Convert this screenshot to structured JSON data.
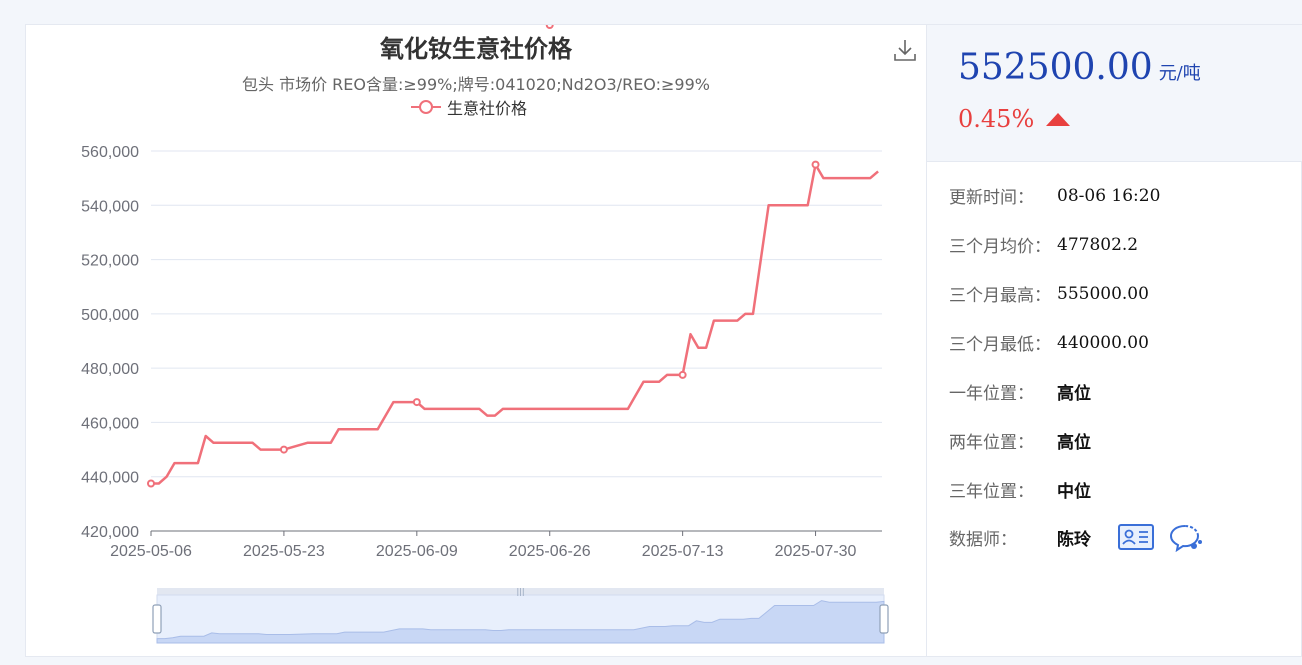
{
  "chart_data": {
    "type": "line",
    "title": "氧化钕生意社价格",
    "subtitle": "包头 市场价 REO含量:≥99%;牌号:041020;Nd2O3/REO:≥99%",
    "series_name": "生意社价格",
    "ylim": [
      420000,
      560000
    ],
    "y_ticks": [
      "420,000",
      "440,000",
      "460,000",
      "480,000",
      "500,000",
      "520,000",
      "540,000",
      "560,000"
    ],
    "x_ticks": [
      "2025-05-06",
      "2025-05-23",
      "2025-06-09",
      "2025-06-26",
      "2025-07-13",
      "2025-07-30"
    ],
    "points": [
      [
        "2025-05-06",
        437500
      ],
      [
        "2025-05-07",
        437500
      ],
      [
        "2025-05-08",
        440000
      ],
      [
        "2025-05-09",
        445000
      ],
      [
        "2025-05-12",
        445000
      ],
      [
        "2025-05-13",
        455000
      ],
      [
        "2025-05-14",
        452500
      ],
      [
        "2025-05-19",
        452500
      ],
      [
        "2025-05-20",
        450000
      ],
      [
        "2025-05-23",
        450000
      ],
      [
        "2025-05-26",
        452500
      ],
      [
        "2025-05-29",
        452500
      ],
      [
        "2025-05-30",
        457500
      ],
      [
        "2025-06-04",
        457500
      ],
      [
        "2025-06-06",
        467500
      ],
      [
        "2025-06-09",
        467500
      ],
      [
        "2025-06-10",
        465000
      ],
      [
        "2025-06-17",
        465000
      ],
      [
        "2025-06-18",
        462500
      ],
      [
        "2025-06-19",
        462500
      ],
      [
        "2025-06-20",
        465000
      ],
      [
        "2025-07-06",
        465000
      ],
      [
        "2025-07-08",
        475000
      ],
      [
        "2025-07-10",
        475000
      ],
      [
        "2025-07-11",
        477500
      ],
      [
        "2025-07-13",
        477500
      ],
      [
        "2025-07-14",
        492500
      ],
      [
        "2025-07-15",
        487500
      ],
      [
        "2025-07-16",
        487500
      ],
      [
        "2025-07-17",
        497500
      ],
      [
        "2025-07-20",
        497500
      ],
      [
        "2025-07-21",
        500000
      ],
      [
        "2025-07-22",
        500000
      ],
      [
        "2025-07-24",
        540000
      ],
      [
        "2025-07-29",
        540000
      ],
      [
        "2025-07-30",
        555000
      ],
      [
        "2025-07-31",
        550000
      ],
      [
        "2025-08-06",
        550000
      ],
      [
        "2025-08-07",
        552500
      ]
    ],
    "markers": [
      "2025-05-06",
      "2025-05-23",
      "2025-06-09",
      "2025-06-26",
      "2025-07-13",
      "2025-07-30"
    ],
    "line_color": "#f0707a",
    "grid": true,
    "legend": "top-center"
  },
  "summary": {
    "price": "552500.00",
    "unit": "元/吨",
    "change": "0.45%",
    "change_color": "#e8403f",
    "price_color": "#1f44b0"
  },
  "details": [
    {
      "label": "更新时间：",
      "value": "08-06 16:20"
    },
    {
      "label": "三个月均价：",
      "value": "477802.2"
    },
    {
      "label": "三个月最高：",
      "value": "555000.00"
    },
    {
      "label": "三个月最低：",
      "value": "440000.00"
    },
    {
      "label": "一年位置：",
      "value": "高位"
    },
    {
      "label": "两年位置：",
      "value": "高位"
    },
    {
      "label": "三年位置：",
      "value": "中位"
    }
  ],
  "analyst": {
    "label": "数据师：",
    "name": "陈玲"
  },
  "icons": {
    "download": "download-icon",
    "card": "contact-card-icon",
    "chat": "chat-icon"
  }
}
